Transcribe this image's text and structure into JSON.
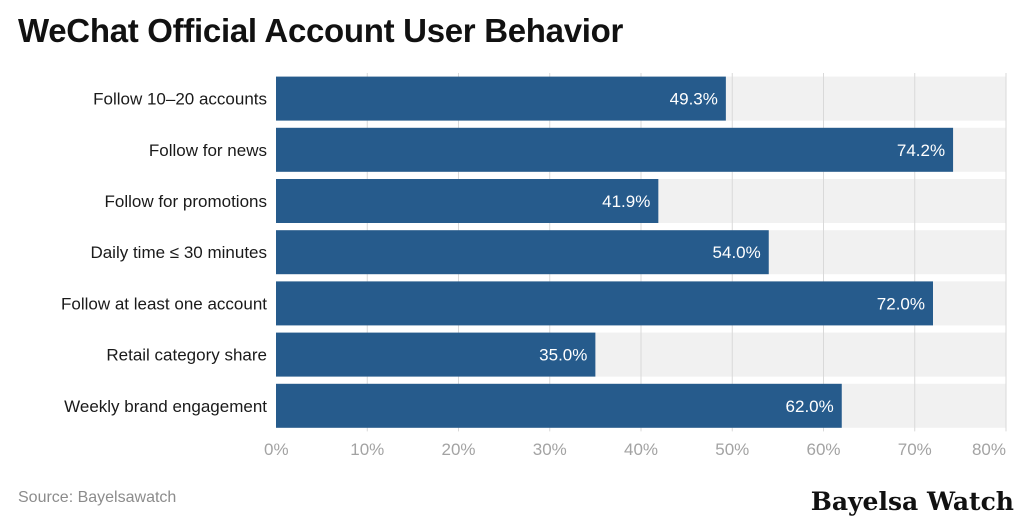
{
  "title": "WeChat Official Account User Behavior",
  "source": "Source: Bayelsawatch",
  "brand": "Bayelsa Watch",
  "colors": {
    "bar": "#265B8C",
    "band": "#F1F1F1",
    "grid": "#D9D9D9",
    "label": "#FFFFFF"
  },
  "chart_data": {
    "type": "bar",
    "orientation": "horizontal",
    "categories": [
      "Follow 10–20 accounts",
      "Follow for news",
      "Follow for promotions",
      "Daily time ≤ 30 minutes",
      "Follow at least one account",
      "Retail category share",
      "Weekly brand engagement"
    ],
    "values": [
      49.3,
      74.2,
      41.9,
      54.0,
      72.0,
      35.0,
      62.0
    ],
    "value_labels": [
      "49.3%",
      "74.2%",
      "41.9%",
      "54.0%",
      "72.0%",
      "35.0%",
      "62.0%"
    ],
    "xlim": [
      0,
      80
    ],
    "x_ticks": [
      0,
      10,
      20,
      30,
      40,
      50,
      60,
      70,
      80
    ],
    "x_tick_labels": [
      "0%",
      "10%",
      "20%",
      "30%",
      "40%",
      "50%",
      "60%",
      "70%",
      "80%"
    ],
    "grid": true,
    "legend": "none"
  }
}
